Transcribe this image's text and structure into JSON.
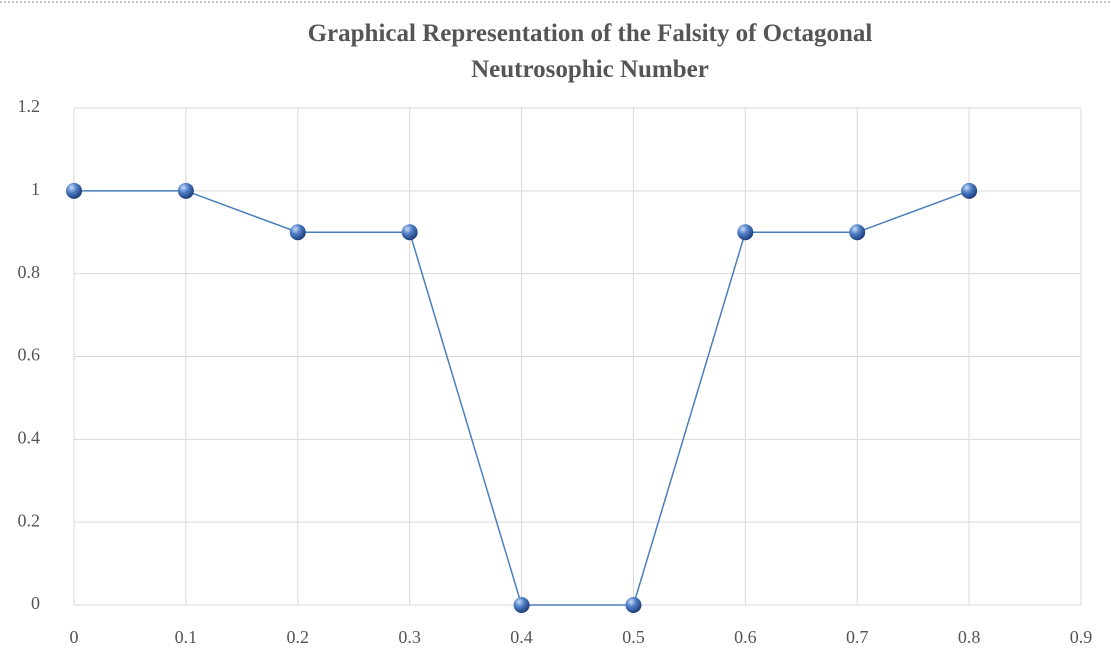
{
  "chart_data": {
    "type": "line",
    "title": "Graphical Representation of the Falsity of Octagonal Neutrosophic Number",
    "x": [
      0,
      0.1,
      0.2,
      0.3,
      0.4,
      0.5,
      0.6,
      0.7,
      0.8
    ],
    "series": [
      {
        "color": "#4a7ebb",
        "values": [
          1,
          1,
          0.9,
          0.9,
          0,
          0,
          0.9,
          0.9,
          1
        ]
      }
    ],
    "xlim": [
      0,
      0.9
    ],
    "xticks": [
      0,
      0.1,
      0.2,
      0.3,
      0.4,
      0.5,
      0.6,
      0.7,
      0.8,
      0.9
    ],
    "ylim": [
      0,
      1.2
    ],
    "yticks": [
      0,
      0.2,
      0.4,
      0.6,
      0.8,
      1,
      1.2
    ],
    "grid": true
  }
}
